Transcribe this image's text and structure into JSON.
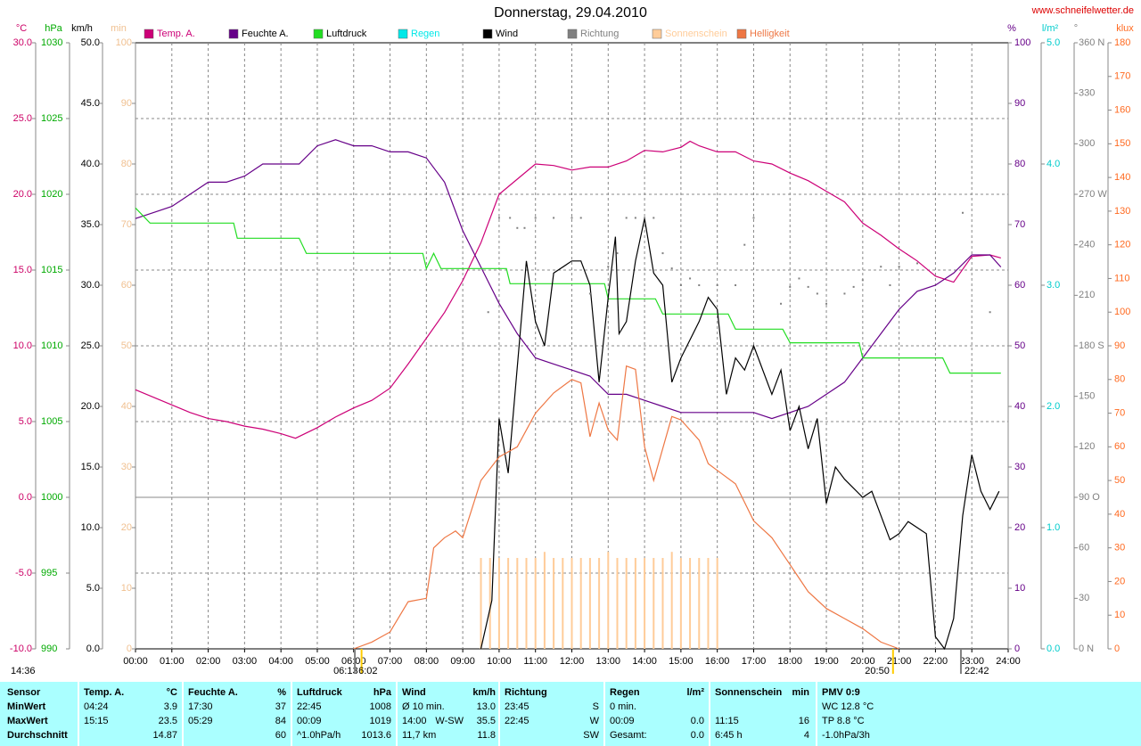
{
  "site": "www.schneifelwetter.de",
  "timestamp": "14:36",
  "chart_data": {
    "type": "line",
    "title": "Donnerstag, 29.04.2010",
    "grid": true,
    "xlim": [
      0,
      24
    ],
    "xticks": [
      {
        "value": 0,
        "label": "00:00"
      },
      {
        "value": 1,
        "label": "01:00"
      },
      {
        "value": 2,
        "label": "02:00"
      },
      {
        "value": 3,
        "label": "03:00"
      },
      {
        "value": 4,
        "label": "04:00"
      },
      {
        "value": 5,
        "label": "05:00"
      },
      {
        "value": 6,
        "label": "06:00"
      },
      {
        "value": 7,
        "label": "07:00"
      },
      {
        "value": 8,
        "label": "08:00"
      },
      {
        "value": 9,
        "label": "09:00"
      },
      {
        "value": 10,
        "label": "10:00"
      },
      {
        "value": 11,
        "label": "11:00"
      },
      {
        "value": 12,
        "label": "12:00"
      },
      {
        "value": 13,
        "label": "13:00"
      },
      {
        "value": 14,
        "label": "14:00"
      },
      {
        "value": 15,
        "label": "15:00"
      },
      {
        "value": 16,
        "label": "16:00"
      },
      {
        "value": 17,
        "label": "17:00"
      },
      {
        "value": 18,
        "label": "18:00"
      },
      {
        "value": 19,
        "label": "19:00"
      },
      {
        "value": 20,
        "label": "20:00"
      },
      {
        "value": 21,
        "label": "21:00"
      },
      {
        "value": 22,
        "label": "22:00"
      },
      {
        "value": 23,
        "label": "23:00"
      },
      {
        "value": 24,
        "label": "24:00"
      }
    ],
    "axes": [
      {
        "unit": "°C",
        "color": "#cc0066",
        "lim": [
          -10,
          30
        ],
        "ticks": [
          {
            "value": -10,
            "label": "-10.0"
          },
          {
            "value": -5,
            "label": "-5.0"
          },
          {
            "value": 0,
            "label": "0.0"
          },
          {
            "value": 5,
            "label": "5.0"
          },
          {
            "value": 10,
            "label": "10.0"
          },
          {
            "value": 15,
            "label": "15.0"
          },
          {
            "value": 20,
            "label": "20.0"
          },
          {
            "value": 25,
            "label": "25.0"
          },
          {
            "value": 30,
            "label": "30.0"
          }
        ]
      },
      {
        "unit": "hPa",
        "color": "#00aa00",
        "lim": [
          990,
          1030
        ],
        "ticks": [
          990,
          995,
          1000,
          1005,
          1010,
          1015,
          1020,
          1025,
          1030
        ]
      },
      {
        "unit": "km/h",
        "color": "#000000",
        "lim": [
          0,
          50
        ],
        "ticks": [
          {
            "value": 0,
            "label": "0.0"
          },
          {
            "value": 5,
            "label": "5.0"
          },
          {
            "value": 10,
            "label": "10.0"
          },
          {
            "value": 15,
            "label": "15.0"
          },
          {
            "value": 20,
            "label": "20.0"
          },
          {
            "value": 25,
            "label": "25.0"
          },
          {
            "value": 30,
            "label": "30.0"
          },
          {
            "value": 35,
            "label": "35.0"
          },
          {
            "value": 40,
            "label": "40.0"
          },
          {
            "value": 45,
            "label": "45.0"
          },
          {
            "value": 50,
            "label": "50.0"
          }
        ]
      },
      {
        "unit": "min",
        "color": "#f0c090",
        "lim": [
          0,
          100
        ],
        "ticks": [
          0,
          10,
          20,
          30,
          40,
          50,
          60,
          70,
          80,
          90,
          100
        ]
      },
      {
        "unit": "%",
        "color": "#660088",
        "lim": [
          0,
          100
        ],
        "ticks": [
          0,
          10,
          20,
          30,
          40,
          50,
          60,
          70,
          80,
          90,
          100
        ]
      },
      {
        "unit": "l/m²",
        "color": "#00cccc",
        "lim": [
          0,
          5
        ],
        "ticks": [
          {
            "value": 0,
            "label": "0.0"
          },
          {
            "value": 1,
            "label": "1.0"
          },
          {
            "value": 2,
            "label": "2.0"
          },
          {
            "value": 3,
            "label": "3.0"
          },
          {
            "value": 4,
            "label": "4.0"
          },
          {
            "value": 5,
            "label": "5.0"
          }
        ]
      },
      {
        "unit": "°",
        "color": "#808080",
        "lim": [
          0,
          360
        ],
        "ticks": [
          {
            "value": 0,
            "label": "0 N"
          },
          30,
          60,
          {
            "value": 90,
            "label": "90 O"
          },
          120,
          150,
          {
            "value": 180,
            "label": "180 S"
          },
          210,
          240,
          {
            "value": 270,
            "label": "270 W"
          },
          300,
          330,
          {
            "value": 360,
            "label": "360 N"
          }
        ]
      },
      {
        "unit": "klux",
        "color": "#ff6a20",
        "lim": [
          0,
          180
        ],
        "ticks": [
          0,
          10,
          20,
          30,
          40,
          50,
          60,
          70,
          80,
          90,
          100,
          110,
          120,
          130,
          140,
          150,
          160,
          170,
          180
        ]
      }
    ],
    "series": [
      {
        "name": "Temp. A.",
        "type": "line",
        "color": "#cc0077",
        "axis": 0,
        "x": [
          0,
          0.5,
          1,
          1.5,
          2,
          2.5,
          3,
          3.5,
          4,
          4.4,
          5,
          5.5,
          6,
          6.5,
          7,
          7.5,
          8,
          8.5,
          9,
          9.5,
          10,
          10.5,
          11,
          11.5,
          12,
          12.5,
          13,
          13.5,
          14,
          14.5,
          15,
          15.25,
          15.5,
          16,
          16.5,
          17,
          17.5,
          18,
          18.5,
          19,
          19.5,
          20,
          20.5,
          21,
          21.5,
          22,
          22.5,
          23,
          23.5,
          23.8
        ],
        "values": [
          7.1,
          6.6,
          6.1,
          5.6,
          5.2,
          5.0,
          4.7,
          4.5,
          4.2,
          3.9,
          4.6,
          5.3,
          5.9,
          6.4,
          7.2,
          8.8,
          10.5,
          12.2,
          14.3,
          16.8,
          20.0,
          21.0,
          22.0,
          21.9,
          21.6,
          21.8,
          21.8,
          22.2,
          22.9,
          22.8,
          23.1,
          23.5,
          23.2,
          22.8,
          22.8,
          22.2,
          22.0,
          21.4,
          20.9,
          20.2,
          19.5,
          18.1,
          17.3,
          16.4,
          15.6,
          14.6,
          14.2,
          15.9,
          16.0,
          15.8
        ]
      },
      {
        "name": "Feuchte A.",
        "type": "line",
        "color": "#660088",
        "axis": 4,
        "x": [
          0,
          0.5,
          1,
          1.5,
          2,
          2.5,
          3,
          3.5,
          4,
          4.5,
          5,
          5.5,
          6,
          6.5,
          7,
          7.5,
          8,
          8.5,
          9,
          9.5,
          10,
          10.5,
          11,
          11.5,
          12,
          12.5,
          13,
          13.5,
          14,
          14.5,
          15,
          15.5,
          16,
          16.5,
          17,
          17.5,
          18,
          18.5,
          19,
          19.5,
          20,
          20.5,
          21,
          21.5,
          22,
          22.5,
          23,
          23.5,
          23.8
        ],
        "values": [
          71,
          72,
          73,
          75,
          77,
          77,
          78,
          80,
          80,
          80,
          83,
          84,
          83,
          83,
          82,
          82,
          81,
          77,
          69,
          63,
          57,
          52,
          48,
          47,
          46,
          45,
          42,
          42,
          41,
          40,
          39,
          39,
          39,
          39,
          39,
          38,
          39,
          40,
          42,
          44,
          48,
          52,
          56,
          59,
          60,
          62,
          65,
          65,
          63
        ]
      },
      {
        "name": "Luftdruck",
        "type": "line",
        "color": "#22dd22",
        "axis": 1,
        "x": [
          0,
          0.4,
          2.7,
          2.8,
          4.5,
          4.7,
          7.9,
          8.0,
          8.2,
          8.4,
          10.2,
          10.3,
          12.9,
          13.0,
          14.3,
          14.5,
          16.3,
          16.5,
          17.8,
          18.0,
          19.9,
          20.0,
          22.2,
          22.4,
          23.8
        ],
        "values": [
          1019.1,
          1018.1,
          1018.1,
          1017.1,
          1017.1,
          1016.1,
          1016.1,
          1015.1,
          1016.1,
          1015.1,
          1015.1,
          1014.1,
          1014.1,
          1013.1,
          1013.1,
          1012.1,
          1012.1,
          1011.1,
          1011.1,
          1010.2,
          1010.2,
          1009.2,
          1009.2,
          1008.2,
          1008.2
        ]
      },
      {
        "name": "Regen",
        "type": "line",
        "color": "#00e8e8",
        "axis": 5
      },
      {
        "name": "Wind",
        "type": "line",
        "color": "#000000",
        "axis": 2,
        "x": [
          9.5,
          9.8,
          10,
          10.25,
          10.75,
          11,
          11.25,
          11.5,
          12,
          12.25,
          12.5,
          12.75,
          13,
          13.2,
          13.3,
          13.5,
          13.75,
          14,
          14.25,
          14.5,
          14.75,
          15,
          15.5,
          15.75,
          16,
          16.25,
          16.5,
          16.75,
          17,
          17.5,
          17.75,
          18,
          18.25,
          18.5,
          18.75,
          19,
          19.25,
          19.5,
          20,
          20.25,
          20.75,
          21,
          21.25,
          21.5,
          21.75,
          22,
          22.25,
          22.5,
          22.75,
          23,
          23.25,
          23.5,
          23.75
        ],
        "values": [
          0,
          4,
          19,
          14.5,
          32,
          27,
          25,
          31,
          32,
          32,
          30,
          22,
          29,
          34,
          26,
          27,
          32,
          35.5,
          31,
          30,
          22,
          24,
          27,
          29,
          28,
          21,
          24,
          23,
          25,
          21,
          23,
          18,
          20,
          16.5,
          19,
          12,
          15,
          14,
          12.5,
          13,
          9,
          9.5,
          10.5,
          10,
          9.5,
          1,
          0,
          2.5,
          11,
          16,
          13,
          11.5,
          13
        ]
      },
      {
        "name": "Richtung",
        "type": "scatter",
        "color": "#808080",
        "axis": 6,
        "x": [
          9.7,
          10,
          10.3,
          10.5,
          10.7,
          11,
          11.5,
          12,
          12.25,
          12.5,
          13,
          13.25,
          13.5,
          13.75,
          14,
          14.25,
          14.5,
          14.75,
          15,
          15.25,
          15.5,
          16,
          16.5,
          16.75,
          17,
          17.75,
          18,
          18.25,
          18.5,
          18.75,
          19,
          19.5,
          19.75,
          20,
          20.5,
          20.75,
          21,
          21.5,
          22.75,
          23.5
        ],
        "values": [
          200,
          256,
          256,
          250,
          250,
          256,
          256,
          256,
          256,
          211,
          227,
          235,
          256,
          256,
          256,
          256,
          235,
          226,
          216,
          220,
          216,
          216,
          216,
          240,
          256,
          205,
          215,
          220,
          215,
          211,
          205,
          211,
          215,
          219,
          227,
          216,
          227,
          229,
          259,
          200
        ]
      },
      {
        "name": "Sonnenschein",
        "type": "bar",
        "color": "#ffcc99",
        "axis": 3,
        "x": [
          9.5,
          9.75,
          10,
          10.25,
          10.5,
          10.75,
          11,
          11.25,
          11.5,
          11.75,
          12,
          12.25,
          12.5,
          12.75,
          13,
          13.25,
          13.5,
          13.75,
          14,
          14.25,
          14.5,
          14.75,
          15,
          15.25,
          15.5,
          15.75,
          16
        ],
        "values": [
          15,
          15,
          15,
          15,
          15,
          15,
          15,
          16,
          15,
          15,
          15,
          15,
          15,
          15,
          16,
          15,
          15,
          15,
          15,
          15,
          15,
          16,
          15,
          15,
          15,
          15,
          15
        ]
      },
      {
        "name": "Helligkeit",
        "type": "line",
        "color": "#ee7744",
        "axis": 7,
        "x": [
          6,
          6.5,
          7,
          7.5,
          8,
          8.2,
          8.5,
          8.8,
          9,
          9.5,
          10,
          10.5,
          11,
          11.5,
          12,
          12.25,
          12.5,
          12.75,
          13,
          13.25,
          13.5,
          13.75,
          14,
          14.25,
          14.75,
          15,
          15.5,
          15.75,
          16,
          16.5,
          17,
          17.5,
          18,
          18.5,
          19,
          19.5,
          20,
          20.5,
          21
        ],
        "values": [
          0,
          2,
          5,
          14,
          15,
          30,
          33,
          35,
          33,
          50,
          57,
          60,
          70,
          76,
          80,
          79,
          63,
          73,
          65,
          62,
          84,
          83,
          60,
          50,
          69,
          68,
          62,
          55,
          53,
          49,
          38,
          33,
          25,
          17,
          12,
          9,
          6,
          2,
          0
        ]
      }
    ],
    "markers": [
      {
        "label": "06:13",
        "x": 6.217,
        "color": "#ffcc00"
      },
      {
        "label": "6:02",
        "x": 6.033,
        "color": "#808080"
      },
      {
        "label": "20:50",
        "x": 20.833,
        "color": "#ffcc00"
      },
      {
        "label": "22:42",
        "x": 22.7,
        "color": "#808080"
      }
    ]
  },
  "table": {
    "groups": [
      {
        "header": {
          "l": "Sensor"
        },
        "rows": [
          {
            "l": "MinWert"
          },
          {
            "l": "MaxWert"
          },
          {
            "l": "Durchschnitt"
          }
        ]
      },
      {
        "header": {
          "l": "Temp. A.",
          "r": "°C"
        },
        "rows": [
          {
            "l": "04:24",
            "r": "3.9"
          },
          {
            "l": "15:15",
            "r": "23.5"
          },
          {
            "r": "14.87"
          }
        ]
      },
      {
        "header": {
          "l": "Feuchte A.",
          "r": "%"
        },
        "rows": [
          {
            "l": "17:30",
            "r": "37"
          },
          {
            "l": "05:29",
            "r": "84"
          },
          {
            "r": "60"
          }
        ]
      },
      {
        "header": {
          "l": "Luftdruck",
          "r": "hPa"
        },
        "rows": [
          {
            "l": "22:45",
            "r": "1008"
          },
          {
            "l": "00:09",
            "r": "1019"
          },
          {
            "l": "^1.0hPa/h",
            "r": "1013.6"
          }
        ]
      },
      {
        "header": {
          "l": "Wind",
          "r": "km/h"
        },
        "rows": [
          {
            "l": "Ø 10 min.",
            "r": "13.0"
          },
          {
            "l": "14:00",
            "m": "W-SW",
            "r": "35.5"
          },
          {
            "l": "11,7 km",
            "r": "11.8"
          }
        ]
      },
      {
        "header": {
          "l": "Richtung"
        },
        "rows": [
          {
            "l": "23:45",
            "r": "S"
          },
          {
            "l": "22:45",
            "r": "W"
          },
          {
            "r": "SW"
          }
        ]
      },
      {
        "header": {
          "l": "Regen",
          "r": "l/m²"
        },
        "rows": [
          {
            "l": "0 min."
          },
          {
            "l": "00:09",
            "r": "0.0"
          },
          {
            "l": "Gesamt:",
            "r": "0.0"
          }
        ]
      },
      {
        "header": {
          "l": "Sonnenschein",
          "r": "min"
        },
        "rows": [
          null,
          {
            "l": "11:15",
            "r": "16"
          },
          {
            "l": "6:45 h",
            "r": "4"
          }
        ]
      },
      {
        "header": {
          "l": "PMV 0:9"
        },
        "rows": [
          {
            "l": "WC 12.8 °C"
          },
          {
            "l": "TP 8.8 °C"
          },
          {
            "l": "-1.0hPa/3h"
          }
        ]
      }
    ]
  }
}
